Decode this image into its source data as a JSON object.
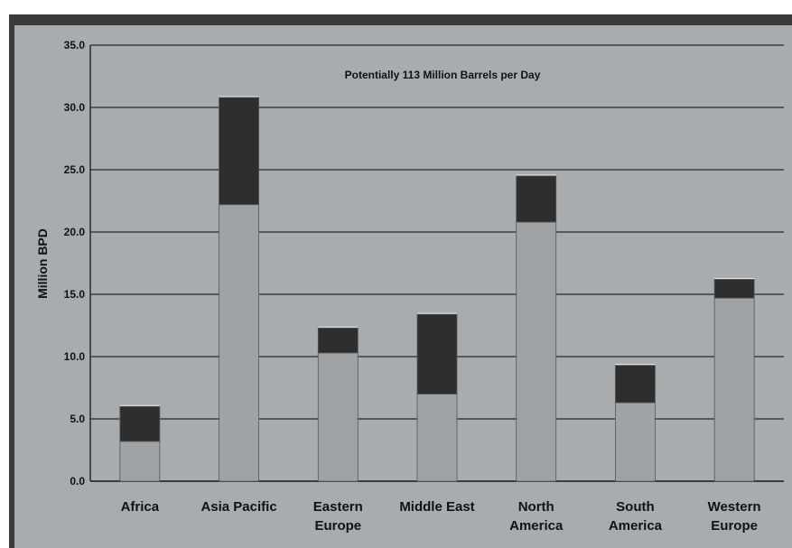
{
  "chart_data": {
    "type": "bar",
    "stacked": true,
    "title": "Potentially 113 Million Barrels per Day",
    "ylabel": "Million BPD",
    "ylim": [
      0,
      35
    ],
    "yticks": [
      "0.0",
      "5.0",
      "10.0",
      "15.0",
      "20.0",
      "25.0",
      "30.0",
      "35.0"
    ],
    "categories": [
      [
        "Africa"
      ],
      [
        "Asia Pacific"
      ],
      [
        "Eastern",
        "Europe"
      ],
      [
        "Middle East"
      ],
      [
        "North",
        "America"
      ],
      [
        "South",
        "America"
      ],
      [
        "Western",
        "Europe"
      ]
    ],
    "series": [
      {
        "values": [
          3.2,
          22.2,
          10.3,
          7.0,
          20.8,
          6.3,
          14.7
        ],
        "color": "#a0a3a6"
      },
      {
        "values": [
          2.8,
          8.6,
          2.0,
          6.4,
          3.7,
          3.0,
          1.5
        ],
        "color": "#2e2e2e"
      }
    ],
    "grid": true
  }
}
